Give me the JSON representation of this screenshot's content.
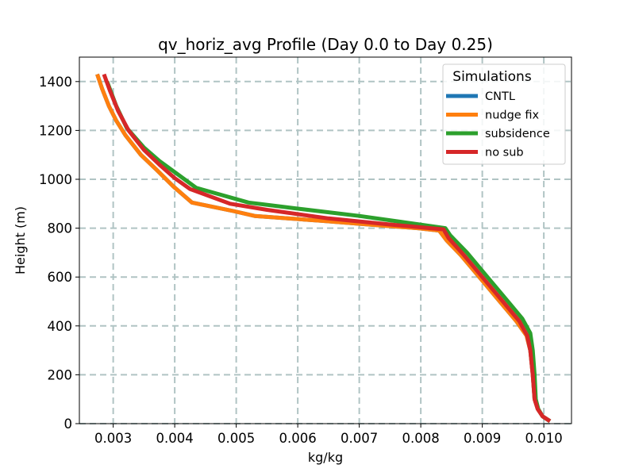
{
  "chart_data": {
    "type": "line",
    "title": "qv_horiz_avg Profile (Day 0.0 to Day 0.25)",
    "xlabel": "kg/kg",
    "ylabel": "Height (m)",
    "xlim": [
      0.00245,
      0.01045
    ],
    "ylim": [
      0,
      1500
    ],
    "grid": true,
    "x_ticks": [
      0.003,
      0.004,
      0.005,
      0.006,
      0.007,
      0.008,
      0.009,
      0.01
    ],
    "x_tick_labels": [
      "0.003",
      "0.004",
      "0.005",
      "0.006",
      "0.007",
      "0.008",
      "0.009",
      "0.010"
    ],
    "y_ticks": [
      0,
      200,
      400,
      600,
      800,
      1000,
      1200,
      1400
    ],
    "y_tick_labels": [
      "0",
      "200",
      "400",
      "600",
      "800",
      "1000",
      "1200",
      "1400"
    ],
    "legend": {
      "title": "Simulations",
      "position": "top-right"
    },
    "series": [
      {
        "name": "CNTL",
        "color": "#1f77b4",
        "x": [
          0.0101,
          0.00998,
          0.0099,
          0.00985,
          0.00982,
          0.00978,
          0.00972,
          0.00955,
          0.00925,
          0.00895,
          0.00865,
          0.00842,
          0.0083,
          0.00795,
          0.0074,
          0.0064,
          0.0053,
          0.00495,
          0.00428,
          0.00398,
          0.0037,
          0.00345,
          0.0032,
          0.00305,
          0.00293,
          0.00282,
          0.00274
        ],
        "y": [
          10,
          30,
          60,
          100,
          200,
          300,
          360,
          420,
          510,
          600,
          690,
          750,
          790,
          800,
          810,
          830,
          850,
          870,
          905,
          970,
          1040,
          1100,
          1180,
          1240,
          1300,
          1370,
          1430
        ]
      },
      {
        "name": "nudge fix",
        "color": "#ff7f0e",
        "x": [
          0.0101,
          0.00998,
          0.0099,
          0.00985,
          0.00982,
          0.00978,
          0.00972,
          0.00955,
          0.00925,
          0.00895,
          0.00865,
          0.00842,
          0.0083,
          0.00795,
          0.0074,
          0.0064,
          0.0053,
          0.00495,
          0.00428,
          0.00398,
          0.0037,
          0.00345,
          0.0032,
          0.00305,
          0.00293,
          0.00282,
          0.00274
        ],
        "y": [
          10,
          30,
          60,
          100,
          200,
          300,
          360,
          420,
          510,
          600,
          690,
          750,
          790,
          800,
          810,
          830,
          850,
          870,
          905,
          970,
          1040,
          1100,
          1180,
          1240,
          1300,
          1370,
          1430
        ]
      },
      {
        "name": "subsidence",
        "color": "#2ca02c",
        "x": [
          0.0101,
          0.00998,
          0.00991,
          0.00987,
          0.00985,
          0.00982,
          0.00978,
          0.00965,
          0.00935,
          0.00905,
          0.00875,
          0.00848,
          0.0084,
          0.0077,
          0.007,
          0.006,
          0.0052,
          0.00435,
          0.00405,
          0.00375,
          0.0035,
          0.00322,
          0.00305,
          0.0029
        ],
        "y": [
          10,
          30,
          60,
          100,
          200,
          300,
          370,
          430,
          520,
          610,
          700,
          770,
          800,
          825,
          850,
          880,
          905,
          965,
          1020,
          1075,
          1130,
          1210,
          1300,
          1400
        ]
      },
      {
        "name": "no sub",
        "color": "#d62728",
        "x": [
          0.0101,
          0.00998,
          0.0099,
          0.00985,
          0.00982,
          0.00978,
          0.00973,
          0.0096,
          0.0093,
          0.009,
          0.0087,
          0.00845,
          0.00837,
          0.0075,
          0.0065,
          0.0055,
          0.0049,
          0.00425,
          0.004,
          0.00375,
          0.0035,
          0.00325,
          0.00308,
          0.00295,
          0.00285
        ],
        "y": [
          10,
          30,
          60,
          100,
          200,
          300,
          360,
          420,
          510,
          600,
          690,
          760,
          795,
          815,
          840,
          875,
          900,
          960,
          1005,
          1060,
          1120,
          1200,
          1280,
          1360,
          1430
        ]
      }
    ]
  }
}
